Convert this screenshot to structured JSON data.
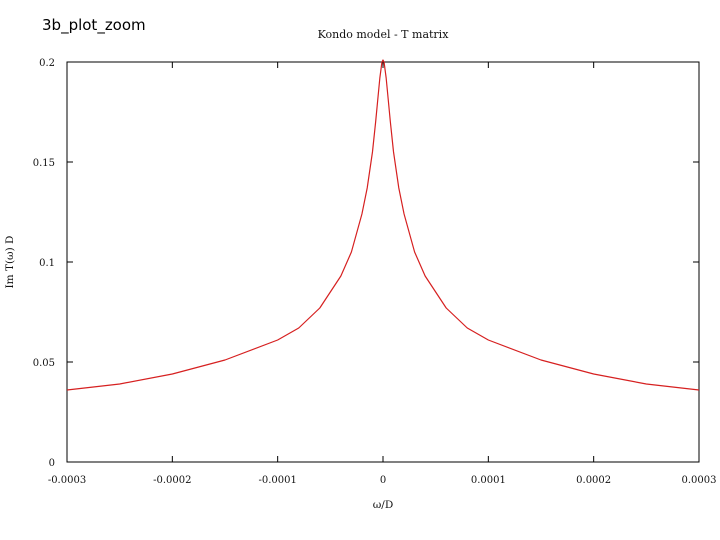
{
  "slide": {
    "title": "3b_plot_zoom"
  },
  "chart_data": {
    "type": "line",
    "title": "Kondo model - T matrix",
    "xlabel": "ω/D",
    "ylabel": "Im T(ω) D",
    "xlim": [
      -0.0003,
      0.0003
    ],
    "ylim": [
      0,
      0.2
    ],
    "x_ticks": [
      {
        "value": -0.0003,
        "label": "-0.0003"
      },
      {
        "value": -0.0002,
        "label": "-0.0002"
      },
      {
        "value": -0.0001,
        "label": "-0.0001"
      },
      {
        "value": 0,
        "label": "0"
      },
      {
        "value": 0.0001,
        "label": "0.0001"
      },
      {
        "value": 0.0002,
        "label": "0.0002"
      },
      {
        "value": 0.0003,
        "label": "0.0003"
      }
    ],
    "y_ticks": [
      {
        "value": 0,
        "label": "0"
      },
      {
        "value": 0.05,
        "label": "0.05"
      },
      {
        "value": 0.1,
        "label": "0.1"
      },
      {
        "value": 0.15,
        "label": "0.15"
      },
      {
        "value": 0.2,
        "label": "0.2"
      }
    ],
    "grid": false,
    "line_color": "#d62020",
    "series": [
      {
        "x": [
          -0.0003,
          -0.00025,
          -0.0002,
          -0.00015,
          -0.0001,
          -8e-05,
          -6e-05,
          -4e-05,
          -3e-05,
          -2e-05,
          -1.5e-05,
          -1e-05,
          -7e-06,
          -5e-06,
          -3e-06,
          -1e-06,
          0,
          1e-06,
          3e-06,
          5e-06,
          7e-06,
          1e-05,
          1.5e-05,
          2e-05,
          3e-05,
          4e-05,
          6e-05,
          8e-05,
          0.0001,
          0.00015,
          0.0002,
          0.00025,
          0.0003
        ],
        "y": [
          0.036,
          0.039,
          0.044,
          0.051,
          0.061,
          0.067,
          0.077,
          0.093,
          0.105,
          0.124,
          0.137,
          0.155,
          0.17,
          0.181,
          0.192,
          0.2,
          0.201,
          0.2,
          0.192,
          0.181,
          0.17,
          0.155,
          0.137,
          0.124,
          0.105,
          0.093,
          0.077,
          0.067,
          0.061,
          0.051,
          0.044,
          0.039,
          0.036
        ]
      }
    ]
  }
}
